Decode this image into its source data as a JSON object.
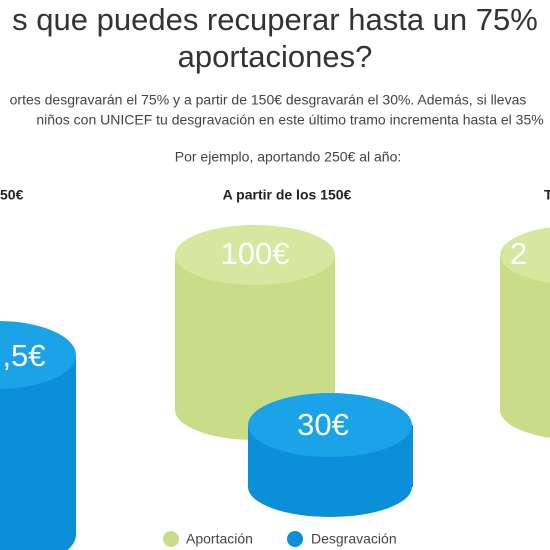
{
  "heading": {
    "line1": "s que puedes recuperar hasta un 75%",
    "line2": "aportaciones?"
  },
  "intro": {
    "line1": "ortes desgravarán el 75% y a partir de 150€ desgravarán el 30%. Además, si llevas",
    "line2": "niños con UNICEF tu desgravación en este último tramo incrementa hasta el 35%"
  },
  "example": "Por ejemplo, aportando 250€ al año:",
  "columns": [
    {
      "heading": "50€",
      "desgravacion": ",5€"
    },
    {
      "heading": "A partir de los 150€",
      "aportacion": "100€",
      "desgravacion": "30€"
    },
    {
      "heading": "T",
      "aportacion": "2"
    }
  ],
  "legend": [
    "Aportación",
    "Desgravación"
  ]
}
